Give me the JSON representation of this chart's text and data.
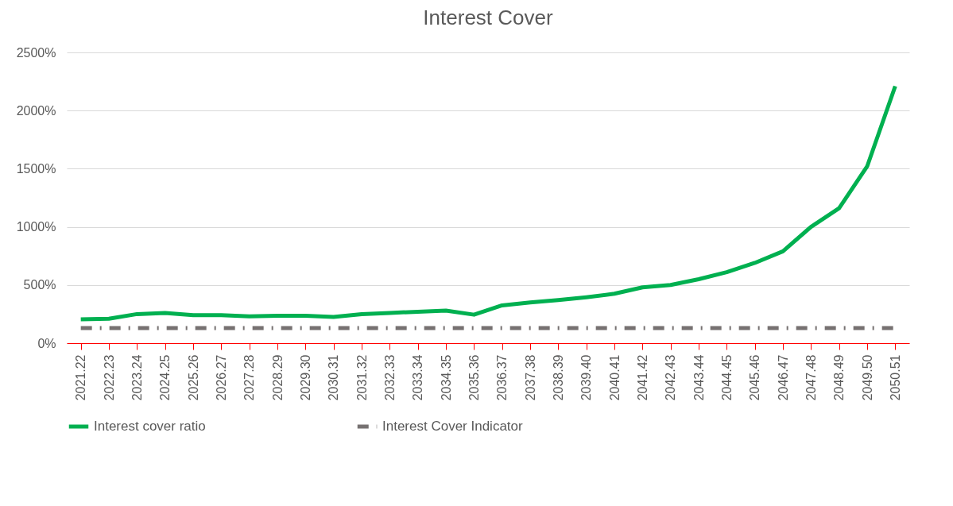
{
  "chart_data": {
    "type": "line",
    "title": "Interest Cover",
    "categories": [
      "2021.22",
      "2022.23",
      "2023.24",
      "2024.25",
      "2025.26",
      "2026.27",
      "2027.28",
      "2028.29",
      "2029.30",
      "2030.31",
      "2031.32",
      "2032.33",
      "2033.34",
      "2034.35",
      "2035.36",
      "2036.37",
      "2037.38",
      "2038.39",
      "2039.40",
      "2040.41",
      "2041.42",
      "2042.43",
      "2043.44",
      "2044.45",
      "2045.46",
      "2046.47",
      "2047.48",
      "2048.49",
      "2049.50",
      "2050.51"
    ],
    "series": [
      {
        "name": "Interest cover ratio",
        "color": "#00b050",
        "line_style": "solid",
        "values": [
          205,
          210,
          250,
          260,
          240,
          240,
          230,
          235,
          235,
          225,
          250,
          260,
          270,
          280,
          245,
          325,
          350,
          370,
          395,
          425,
          480,
          500,
          550,
          610,
          690,
          790,
          1000,
          1160,
          1520,
          2210
        ]
      },
      {
        "name": "Interest Cover Indicator",
        "color": "#767171",
        "line_style": "dashed",
        "values": [
          130,
          130,
          130,
          130,
          130,
          130,
          130,
          130,
          130,
          130,
          130,
          130,
          130,
          130,
          130,
          130,
          130,
          130,
          130,
          130,
          130,
          130,
          130,
          130,
          130,
          130,
          130,
          130,
          130,
          130
        ]
      }
    ],
    "ylim": [
      0,
      2500
    ],
    "yticks": [
      {
        "value": 0,
        "label": "0%"
      },
      {
        "value": 500,
        "label": "500%"
      },
      {
        "value": 1000,
        "label": "1000%"
      },
      {
        "value": 1500,
        "label": "1500%"
      },
      {
        "value": 2000,
        "label": "2000%"
      },
      {
        "value": 2500,
        "label": "2500%"
      }
    ],
    "grid": "y",
    "legend": "bottom",
    "marker": "none"
  }
}
